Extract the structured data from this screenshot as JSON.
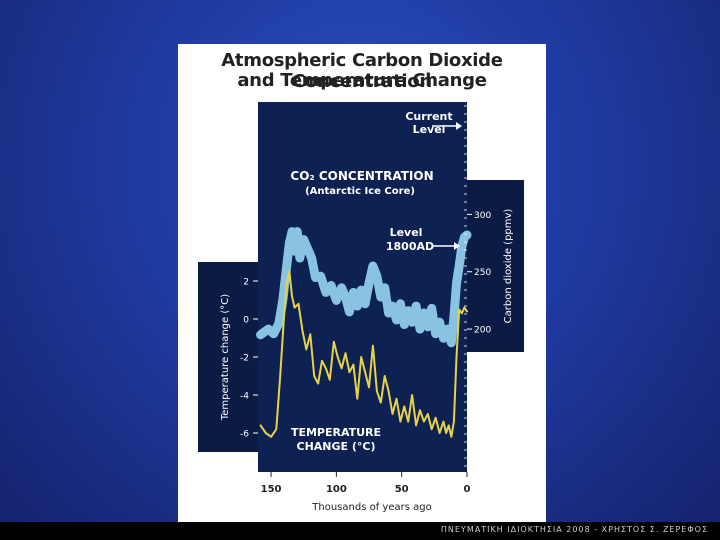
{
  "figure": {
    "title_line1": "Atmospheric Carbon Dioxide Concentration",
    "title_line2": "and Temperature Change"
  },
  "footer": {
    "text": "ΠΝΕΥΜΑΤΙΚΗ ΙΔΙΟΚΤΗΣΙΑ 2008 - ΧΡΗΣΤΟΣ Σ. ΖΕΡΕΦΟΣ"
  },
  "colors": {
    "co2": "#8fcdea",
    "temperature": "#e8d24a",
    "plot_bg": "#0d2152"
  },
  "chart_data": {
    "type": "line",
    "x_axis": {
      "label": "Thousands of years ago",
      "ticks": [
        150,
        100,
        50,
        0
      ],
      "reversed": true,
      "range": [
        160,
        0
      ]
    },
    "y_left": {
      "label": "Temperature change (°C)",
      "ticks": [
        2,
        0,
        -2,
        -4,
        -6
      ],
      "range": [
        -7,
        3
      ]
    },
    "y_right": {
      "label": "Carbon dioxide (ppmv)",
      "ticks": [
        300,
        250,
        200
      ],
      "range": [
        180,
        330
      ]
    },
    "annotations": {
      "current": [
        "Current",
        "Level"
      ],
      "co2_header": [
        "CO₂  CONCENTRATION",
        "(Antarctic Ice Core)"
      ],
      "level1800": [
        "Level",
        "1800AD"
      ],
      "temp_header": [
        "TEMPERATURE",
        "CHANGE (°C)"
      ]
    },
    "series": [
      {
        "name": "CO₂ CONCENTRATION",
        "axis": "right",
        "x": [
          158,
          152,
          148,
          144,
          141,
          138,
          136,
          134,
          132,
          130,
          128,
          125,
          122,
          119,
          116,
          112,
          108,
          104,
          100,
          96,
          93,
          90,
          87,
          84,
          81,
          78,
          75,
          72,
          69,
          66,
          63,
          60,
          57,
          54,
          51,
          48,
          45,
          42,
          39,
          36,
          33,
          30,
          27,
          24,
          21,
          18,
          15,
          12,
          10,
          8,
          6,
          4,
          2,
          0
        ],
        "values": [
          195,
          200,
          196,
          205,
          225,
          255,
          275,
          285,
          268,
          285,
          262,
          278,
          270,
          262,
          245,
          246,
          232,
          238,
          225,
          236,
          228,
          215,
          232,
          220,
          234,
          222,
          240,
          255,
          246,
          228,
          236,
          214,
          220,
          208,
          222,
          204,
          216,
          206,
          220,
          200,
          214,
          202,
          218,
          196,
          206,
          192,
          200,
          188,
          210,
          240,
          255,
          272,
          280,
          282
        ]
      },
      {
        "name": "TEMPERATURE CHANGE (°C)",
        "axis": "left",
        "x": [
          158,
          154,
          150,
          146,
          143,
          140,
          138,
          136,
          134,
          132,
          129,
          126,
          123,
          120,
          117,
          114,
          111,
          108,
          105,
          102,
          99,
          96,
          93,
          90,
          87,
          84,
          81,
          78,
          75,
          72,
          69,
          66,
          63,
          60,
          57,
          54,
          51,
          48,
          45,
          42,
          39,
          36,
          33,
          30,
          27,
          24,
          21,
          18,
          16,
          14,
          12,
          10,
          8,
          6,
          4,
          2,
          0
        ],
        "values": [
          -5.6,
          -6.0,
          -6.2,
          -5.8,
          -3.0,
          0.2,
          1.8,
          2.5,
          1.2,
          0.6,
          0.8,
          -0.6,
          -1.6,
          -0.8,
          -3.0,
          -3.4,
          -2.2,
          -2.6,
          -3.2,
          -1.2,
          -2.0,
          -2.6,
          -1.8,
          -2.8,
          -2.4,
          -4.2,
          -2.0,
          -2.8,
          -3.6,
          -1.4,
          -3.8,
          -4.4,
          -3.0,
          -3.8,
          -5.0,
          -4.2,
          -5.4,
          -4.6,
          -5.4,
          -4.0,
          -5.6,
          -4.8,
          -5.4,
          -5.0,
          -5.8,
          -5.2,
          -6.0,
          -5.4,
          -6.0,
          -5.6,
          -6.2,
          -5.4,
          -2.0,
          0.5,
          0.3,
          0.6,
          0.4
        ]
      }
    ]
  }
}
